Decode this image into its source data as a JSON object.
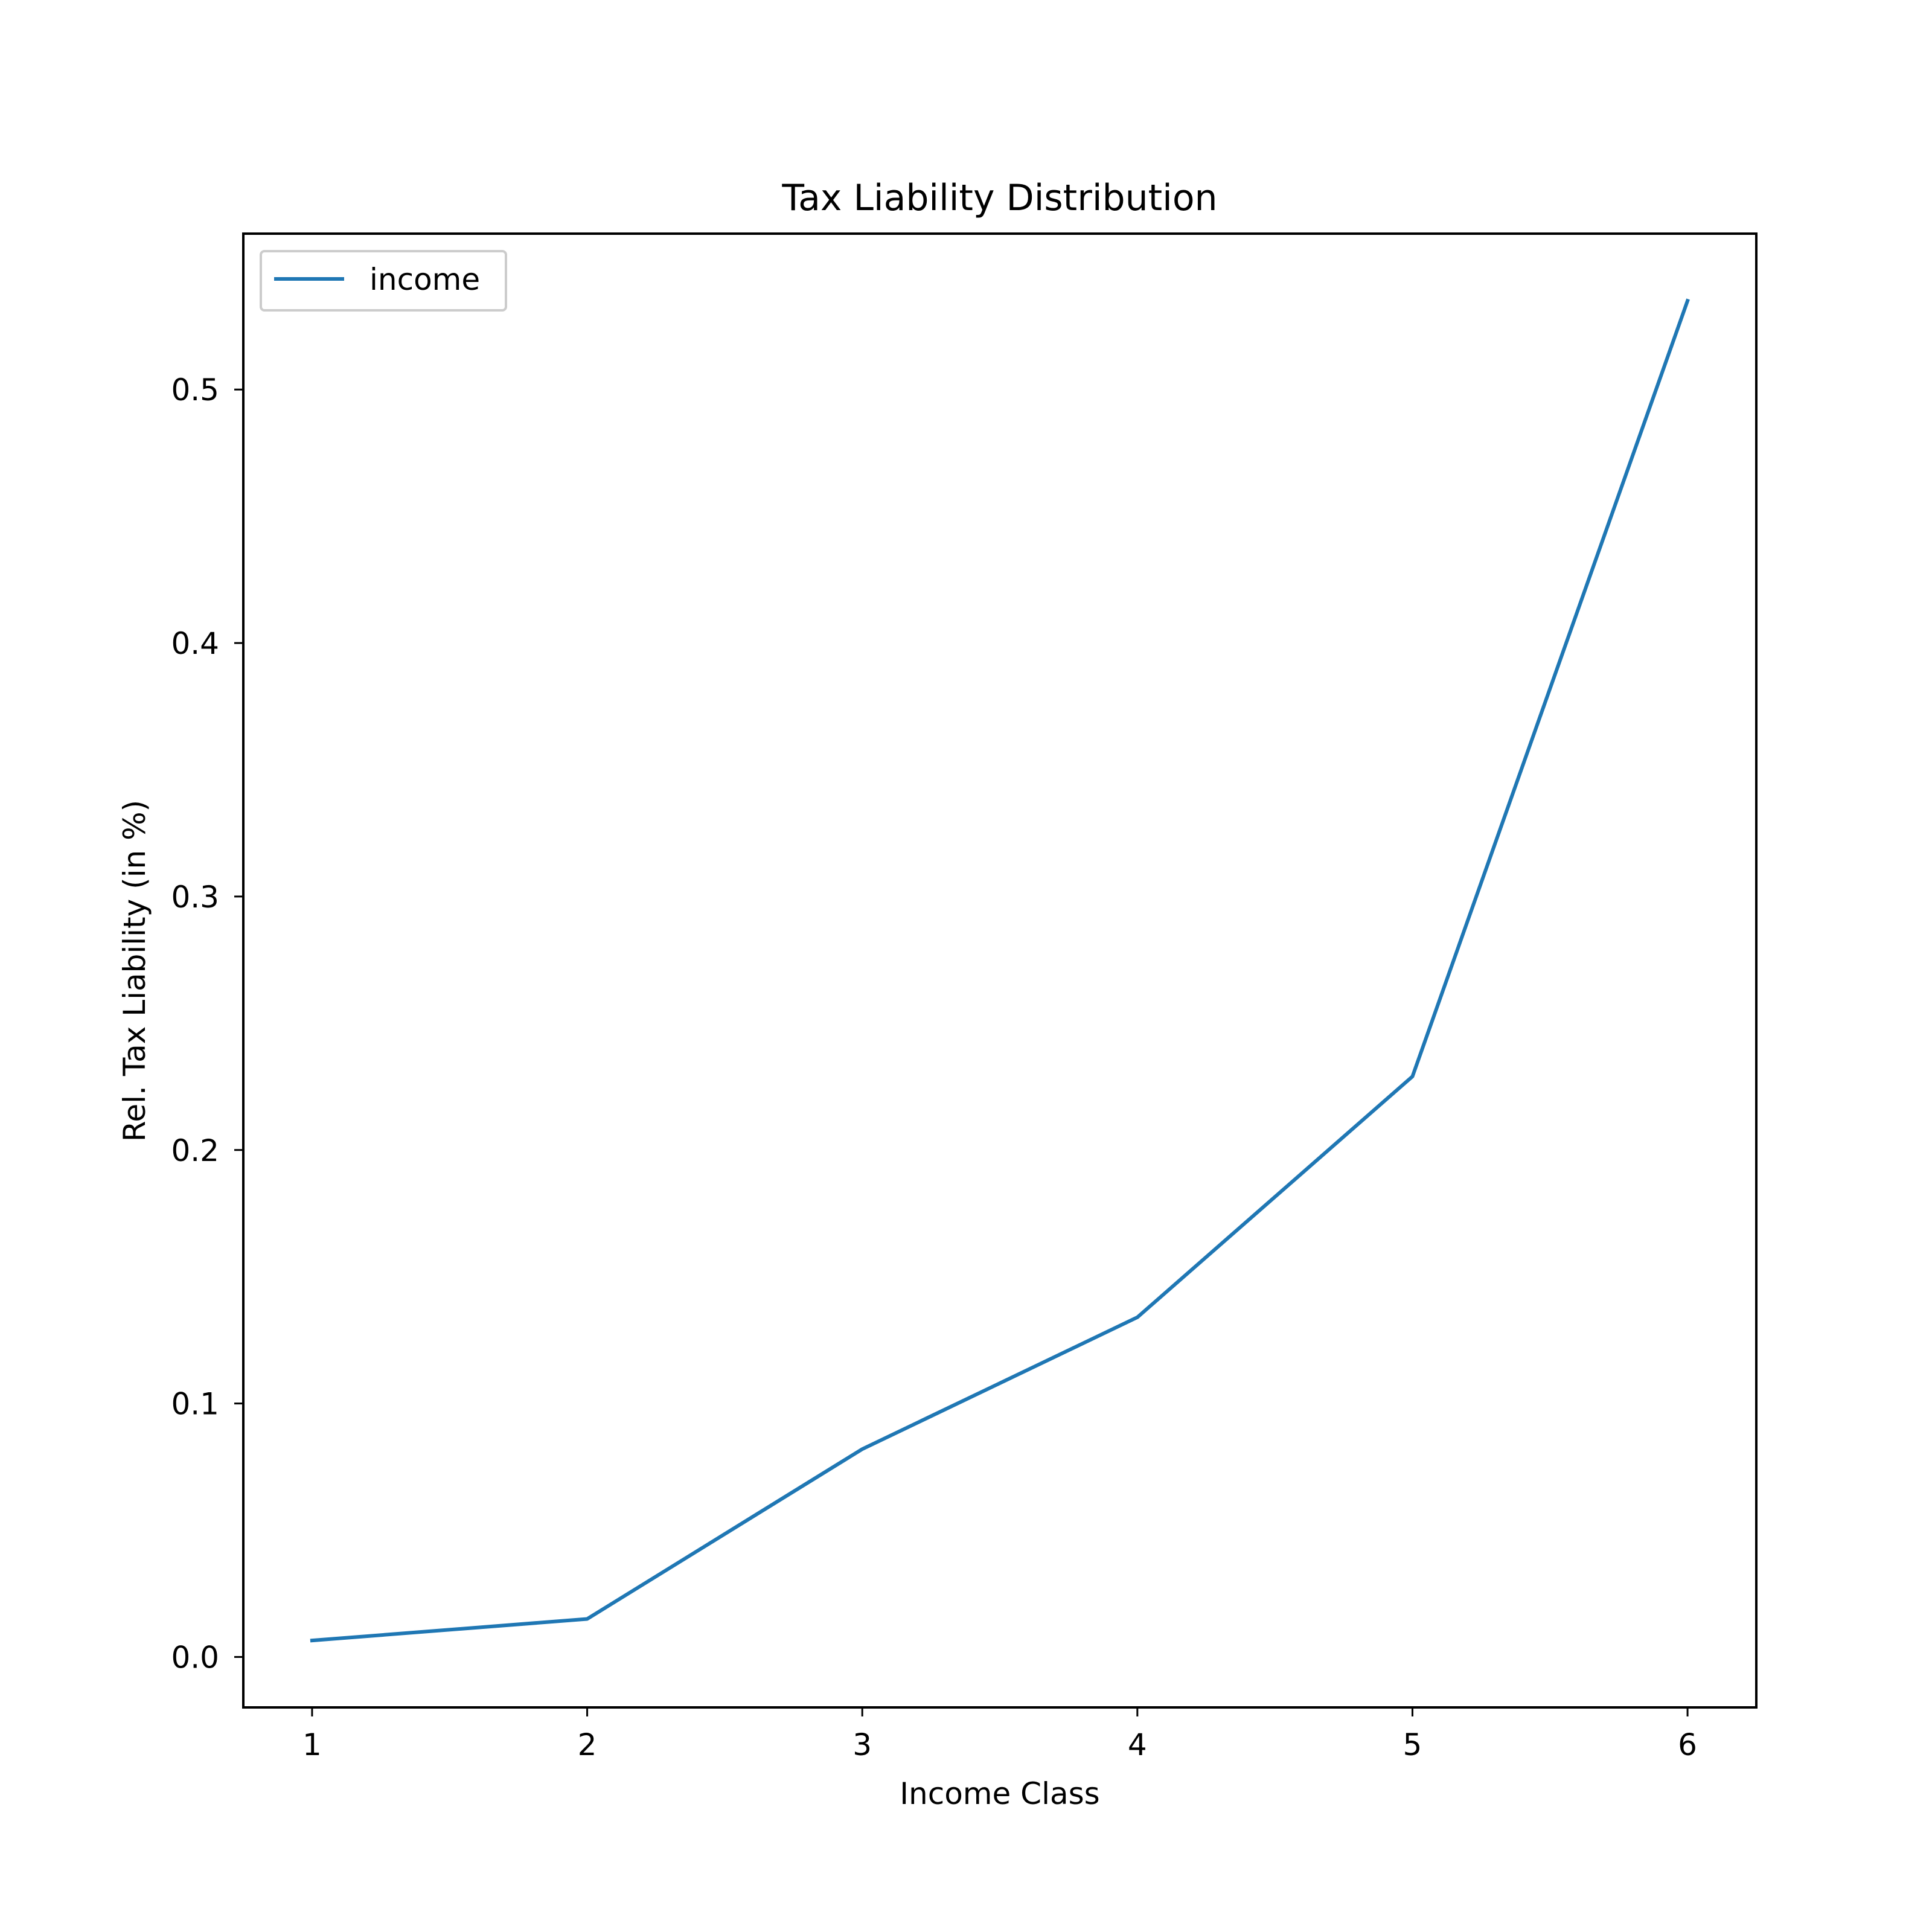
{
  "chart_data": {
    "type": "line",
    "title": "Tax Liability Distribution",
    "xlabel": "Income Class",
    "ylabel": "Rel. Tax Liability (in %)",
    "x": [
      1,
      2,
      3,
      4,
      5,
      6
    ],
    "series": [
      {
        "name": "income",
        "color": "#1f77b4",
        "values": [
          0.0065,
          0.015,
          0.082,
          0.134,
          0.229,
          0.535
        ]
      }
    ],
    "xlim": [
      0.75,
      6.25
    ],
    "ylim": [
      -0.0199,
      0.5615
    ],
    "xticks": [
      1,
      2,
      3,
      4,
      5,
      6
    ],
    "xtick_labels": [
      "1",
      "2",
      "3",
      "4",
      "5",
      "6"
    ],
    "yticks": [
      0.0,
      0.1,
      0.2,
      0.3,
      0.4,
      0.5
    ],
    "ytick_labels": [
      "0.0",
      "0.1",
      "0.2",
      "0.3",
      "0.4",
      "0.5"
    ],
    "grid": false,
    "legend_position": "top-left"
  }
}
